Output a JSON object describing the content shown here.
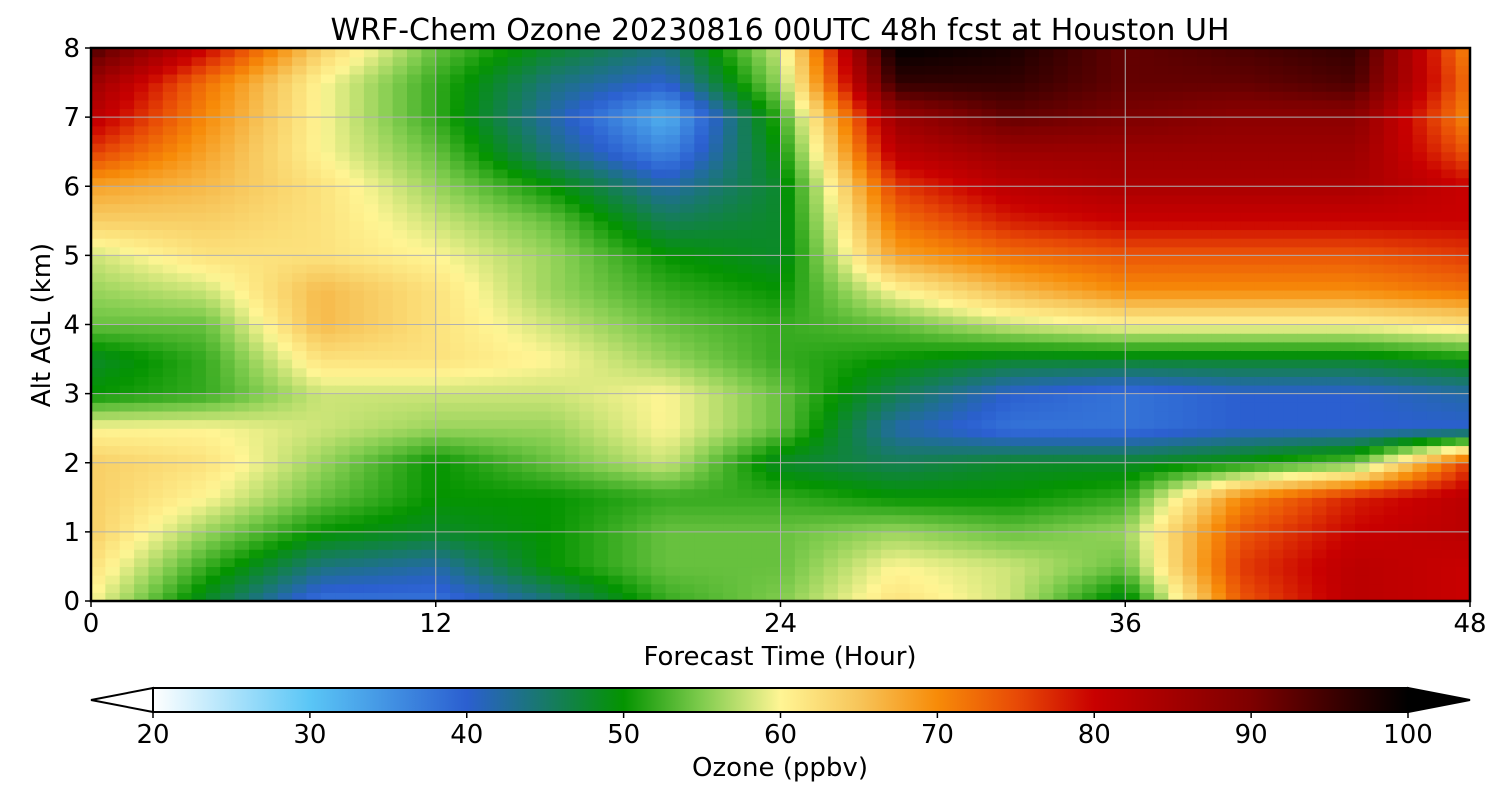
{
  "chart_data": {
    "type": "heatmap",
    "title": "WRF-Chem Ozone  20230816 00UTC 48h fcst at Houston UH",
    "xlabel": "Forecast Time (Hour)",
    "ylabel": "Alt AGL (km)",
    "x_ticks": [
      0,
      12,
      24,
      36,
      48
    ],
    "y_ticks": [
      0,
      1,
      2,
      3,
      4,
      5,
      6,
      7,
      8
    ],
    "xlim": [
      0,
      48
    ],
    "ylim": [
      0,
      8
    ],
    "grid": true,
    "x": [
      0,
      4,
      8,
      12,
      16,
      20,
      24,
      28,
      32,
      36,
      40,
      44,
      48
    ],
    "y": [
      0,
      0.5,
      1,
      1.5,
      2,
      2.5,
      3,
      3.5,
      4,
      4.5,
      5,
      5.5,
      6,
      6.5,
      7,
      7.5,
      8
    ],
    "z": [
      [
        60,
        48,
        38,
        38,
        44,
        52,
        55,
        62,
        58,
        48,
        74,
        82,
        80
      ],
      [
        62,
        52,
        44,
        42,
        50,
        54,
        54,
        60,
        58,
        54,
        76,
        82,
        80
      ],
      [
        64,
        56,
        50,
        48,
        50,
        54,
        54,
        56,
        54,
        56,
        74,
        80,
        82
      ],
      [
        64,
        60,
        54,
        50,
        50,
        52,
        52,
        50,
        50,
        52,
        70,
        78,
        82
      ],
      [
        64,
        62,
        56,
        50,
        54,
        58,
        48,
        46,
        48,
        48,
        50,
        54,
        76
      ],
      [
        60,
        60,
        58,
        56,
        56,
        60,
        54,
        42,
        38,
        38,
        40,
        40,
        40
      ],
      [
        50,
        52,
        58,
        58,
        58,
        60,
        54,
        46,
        40,
        38,
        40,
        40,
        42
      ],
      [
        48,
        52,
        62,
        62,
        60,
        56,
        52,
        50,
        48,
        48,
        48,
        48,
        50
      ],
      [
        54,
        54,
        66,
        62,
        58,
        54,
        52,
        54,
        58,
        60,
        60,
        60,
        62
      ],
      [
        56,
        58,
        66,
        62,
        56,
        52,
        50,
        60,
        66,
        70,
        70,
        70,
        72
      ],
      [
        58,
        62,
        62,
        60,
        56,
        50,
        48,
        68,
        72,
        74,
        74,
        74,
        76
      ],
      [
        64,
        64,
        62,
        58,
        54,
        46,
        48,
        72,
        78,
        80,
        80,
        80,
        80
      ],
      [
        68,
        66,
        62,
        56,
        50,
        42,
        48,
        76,
        82,
        84,
        84,
        84,
        80
      ],
      [
        76,
        68,
        60,
        54,
        44,
        36,
        50,
        82,
        86,
        86,
        86,
        86,
        74
      ],
      [
        82,
        70,
        60,
        52,
        42,
        32,
        52,
        86,
        92,
        90,
        88,
        88,
        70
      ],
      [
        86,
        72,
        60,
        52,
        44,
        40,
        56,
        96,
        96,
        92,
        92,
        94,
        72
      ],
      [
        94,
        80,
        64,
        54,
        48,
        44,
        58,
        100,
        98,
        92,
        94,
        96,
        70
      ]
    ],
    "colorbar": {
      "label": "Ozone  (ppbv)",
      "ticks": [
        20,
        30,
        40,
        50,
        60,
        70,
        80,
        90,
        100
      ],
      "range": [
        20,
        100
      ],
      "extend": "both",
      "stops": [
        {
          "v": 20,
          "c": "#ffffff"
        },
        {
          "v": 30,
          "c": "#5ac6f6"
        },
        {
          "v": 40,
          "c": "#2b5fd0"
        },
        {
          "v": 50,
          "c": "#049400"
        },
        {
          "v": 55,
          "c": "#80cc4e"
        },
        {
          "v": 60,
          "c": "#fff594"
        },
        {
          "v": 65,
          "c": "#f7c55a"
        },
        {
          "v": 70,
          "c": "#f78b08"
        },
        {
          "v": 75,
          "c": "#e84b06"
        },
        {
          "v": 80,
          "c": "#c90000"
        },
        {
          "v": 90,
          "c": "#7d0000"
        },
        {
          "v": 100,
          "c": "#000000"
        }
      ]
    }
  }
}
